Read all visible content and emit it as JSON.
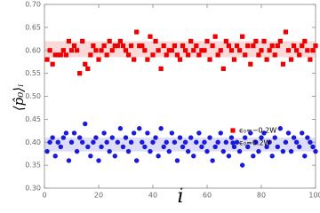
{
  "chart_data": {
    "type": "scatter",
    "x_label": "i",
    "y_label": "⟨p̂₀⟩ᵢ",
    "xlim": [
      0,
      100
    ],
    "xticks": [
      0,
      20,
      40,
      60,
      80,
      100
    ],
    "ylim": [
      0.3,
      0.7
    ],
    "yticks": [
      {
        "value": 0.3,
        "label": "0.30"
      },
      {
        "value": 0.35,
        "label": "0.35"
      },
      {
        "value": 0.4,
        "label": "0.40"
      },
      {
        "value": 0.45,
        "label": "0.45"
      },
      {
        "value": 0.5,
        "label": "0.50"
      },
      {
        "value": 0.55,
        "label": "0.55"
      },
      {
        "value": 0.6,
        "label": "0.60"
      },
      {
        "value": 0.65,
        "label": "0.65"
      },
      {
        "value": 0.7,
        "label": "0.70"
      }
    ],
    "x": [
      1,
      2,
      3,
      4,
      5,
      6,
      7,
      8,
      9,
      10,
      11,
      12,
      13,
      14,
      15,
      16,
      17,
      18,
      19,
      20,
      21,
      22,
      23,
      24,
      25,
      26,
      27,
      28,
      29,
      30,
      31,
      32,
      33,
      34,
      35,
      36,
      37,
      38,
      39,
      40,
      41,
      42,
      43,
      44,
      45,
      46,
      47,
      48,
      49,
      50,
      51,
      52,
      53,
      54,
      55,
      56,
      57,
      58,
      59,
      60,
      61,
      62,
      63,
      64,
      65,
      66,
      67,
      68,
      69,
      70,
      71,
      72,
      73,
      74,
      75,
      76,
      77,
      78,
      79,
      80,
      81,
      82,
      83,
      84,
      85,
      86,
      87,
      88,
      89,
      90,
      91,
      92,
      93,
      94,
      95,
      96,
      97,
      98,
      99,
      100
    ],
    "legend": "right",
    "series": [
      {
        "name": "ϵ₀=−0.2W",
        "color": "#ee0000",
        "marker": "square",
        "band": [
          0.585,
          0.62
        ],
        "values": [
          0.58,
          0.6,
          0.57,
          0.59,
          0.59,
          0.59,
          0.6,
          0.59,
          0.62,
          0.6,
          0.61,
          0.6,
          0.55,
          0.62,
          0.57,
          0.56,
          0.59,
          0.61,
          0.6,
          0.58,
          0.6,
          0.61,
          0.59,
          0.62,
          0.6,
          0.61,
          0.61,
          0.62,
          0.61,
          0.6,
          0.59,
          0.61,
          0.58,
          0.64,
          0.61,
          0.61,
          0.6,
          0.58,
          0.63,
          0.59,
          0.62,
          0.6,
          0.56,
          0.61,
          0.59,
          0.6,
          0.6,
          0.61,
          0.59,
          0.58,
          0.61,
          0.6,
          0.59,
          0.62,
          0.6,
          0.61,
          0.59,
          0.6,
          0.6,
          0.62,
          0.58,
          0.61,
          0.63,
          0.59,
          0.6,
          0.56,
          0.62,
          0.61,
          0.6,
          0.58,
          0.61,
          0.6,
          0.63,
          0.59,
          0.61,
          0.57,
          0.61,
          0.62,
          0.59,
          0.6,
          0.62,
          0.58,
          0.6,
          0.61,
          0.59,
          0.61,
          0.62,
          0.57,
          0.64,
          0.6,
          0.58,
          0.61,
          0.6,
          0.59,
          0.61,
          0.62,
          0.6,
          0.58,
          0.6,
          0.61
        ]
      },
      {
        "name": "ϵ₀=0.2W",
        "color": "#1a1adb",
        "marker": "circle",
        "band": [
          0.38,
          0.41
        ],
        "values": [
          0.38,
          0.4,
          0.41,
          0.37,
          0.4,
          0.39,
          0.41,
          0.42,
          0.36,
          0.4,
          0.42,
          0.38,
          0.41,
          0.4,
          0.44,
          0.39,
          0.37,
          0.4,
          0.41,
          0.36,
          0.39,
          0.42,
          0.4,
          0.38,
          0.41,
          0.37,
          0.4,
          0.43,
          0.39,
          0.41,
          0.38,
          0.4,
          0.42,
          0.36,
          0.43,
          0.4,
          0.39,
          0.42,
          0.38,
          0.4,
          0.41,
          0.37,
          0.43,
          0.39,
          0.4,
          0.38,
          0.42,
          0.4,
          0.36,
          0.41,
          0.39,
          0.4,
          0.38,
          0.41,
          0.37,
          0.4,
          0.42,
          0.39,
          0.4,
          0.38,
          0.41,
          0.36,
          0.39,
          0.4,
          0.42,
          0.38,
          0.4,
          0.37,
          0.41,
          0.39,
          0.4,
          0.38,
          0.35,
          0.41,
          0.39,
          0.42,
          0.37,
          0.4,
          0.38,
          0.41,
          0.42,
          0.39,
          0.4,
          0.37,
          0.41,
          0.39,
          0.43,
          0.38,
          0.4,
          0.42,
          0.38,
          0.41,
          0.4,
          0.39,
          0.42,
          0.37,
          0.41,
          0.4,
          0.39,
          0.38
        ]
      }
    ]
  }
}
